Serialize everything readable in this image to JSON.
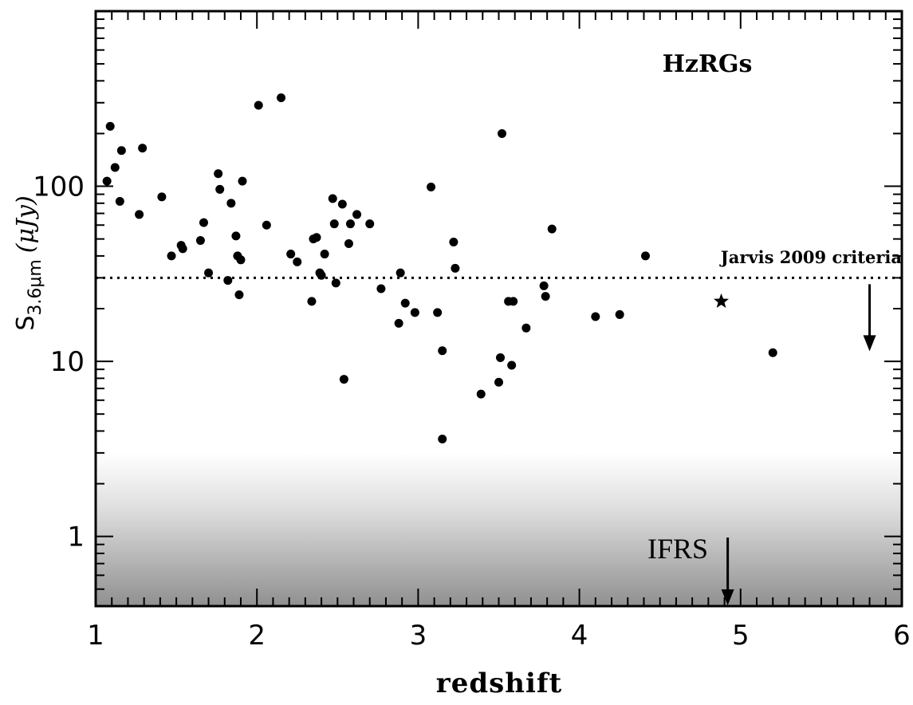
{
  "chart_data": {
    "type": "scatter",
    "x_axis": {
      "label": "redshift",
      "range": [
        1,
        6
      ],
      "ticks": [
        1,
        2,
        3,
        4,
        5,
        6
      ]
    },
    "y_axis": {
      "label_main": "S",
      "label_sub": "3.6μm",
      "label_unit": "(μJy)",
      "scale": "log",
      "range": [
        0.4,
        1000
      ],
      "ticks": [
        1,
        10,
        100
      ],
      "tick_labels": [
        "1",
        "10",
        "100"
      ]
    },
    "series": [
      {
        "marker": "circle",
        "points": [
          [
            1.07,
            107
          ],
          [
            1.09,
            220
          ],
          [
            1.12,
            128
          ],
          [
            1.15,
            82
          ],
          [
            1.16,
            160
          ],
          [
            1.27,
            69
          ],
          [
            1.29,
            165
          ],
          [
            1.41,
            87
          ],
          [
            1.47,
            40
          ],
          [
            1.53,
            46
          ],
          [
            1.54,
            44
          ],
          [
            1.65,
            49
          ],
          [
            1.67,
            62
          ],
          [
            1.7,
            32
          ],
          [
            1.76,
            118
          ],
          [
            1.77,
            96
          ],
          [
            1.82,
            29
          ],
          [
            1.84,
            80
          ],
          [
            1.87,
            52
          ],
          [
            1.88,
            40
          ],
          [
            1.89,
            24
          ],
          [
            1.9,
            38
          ],
          [
            1.91,
            107
          ],
          [
            2.01,
            290
          ],
          [
            2.06,
            60
          ],
          [
            2.15,
            320
          ],
          [
            2.21,
            41
          ],
          [
            2.25,
            37
          ],
          [
            2.34,
            22
          ],
          [
            2.35,
            50
          ],
          [
            2.37,
            51
          ],
          [
            2.39,
            32
          ],
          [
            2.4,
            31
          ],
          [
            2.42,
            41
          ],
          [
            2.47,
            85
          ],
          [
            2.48,
            61
          ],
          [
            2.49,
            28
          ],
          [
            2.53,
            79
          ],
          [
            2.54,
            7.9
          ],
          [
            2.57,
            47
          ],
          [
            2.58,
            61
          ],
          [
            2.62,
            69
          ],
          [
            2.7,
            61
          ],
          [
            2.77,
            26
          ],
          [
            2.88,
            16.5
          ],
          [
            2.89,
            32
          ],
          [
            2.92,
            21.5
          ],
          [
            2.98,
            19
          ],
          [
            3.08,
            99
          ],
          [
            3.12,
            19
          ],
          [
            3.15,
            11.5
          ],
          [
            3.15,
            3.6
          ],
          [
            3.22,
            48
          ],
          [
            3.23,
            34
          ],
          [
            3.39,
            6.5
          ],
          [
            3.5,
            7.6
          ],
          [
            3.51,
            10.5
          ],
          [
            3.52,
            200
          ],
          [
            3.56,
            22
          ],
          [
            3.58,
            9.5
          ],
          [
            3.59,
            22
          ],
          [
            3.67,
            15.5
          ],
          [
            3.78,
            27
          ],
          [
            3.79,
            23.5
          ],
          [
            3.83,
            57
          ],
          [
            4.1,
            18
          ],
          [
            4.25,
            18.5
          ],
          [
            4.41,
            40
          ],
          [
            5.2,
            11.2
          ]
        ]
      },
      {
        "marker": "star",
        "points": [
          [
            4.88,
            22
          ]
        ]
      }
    ],
    "annotations": {
      "group_label": "HzRGs",
      "criteria_label": "Jarvis 2009 criteria",
      "criteria_level": 30,
      "criteria_arrow_x": 5.8,
      "ifrs_label": "IFRS",
      "ifrs_arrow_x": 4.92,
      "ifrs_region_max": 3
    },
    "grid": false,
    "legend": "none"
  }
}
